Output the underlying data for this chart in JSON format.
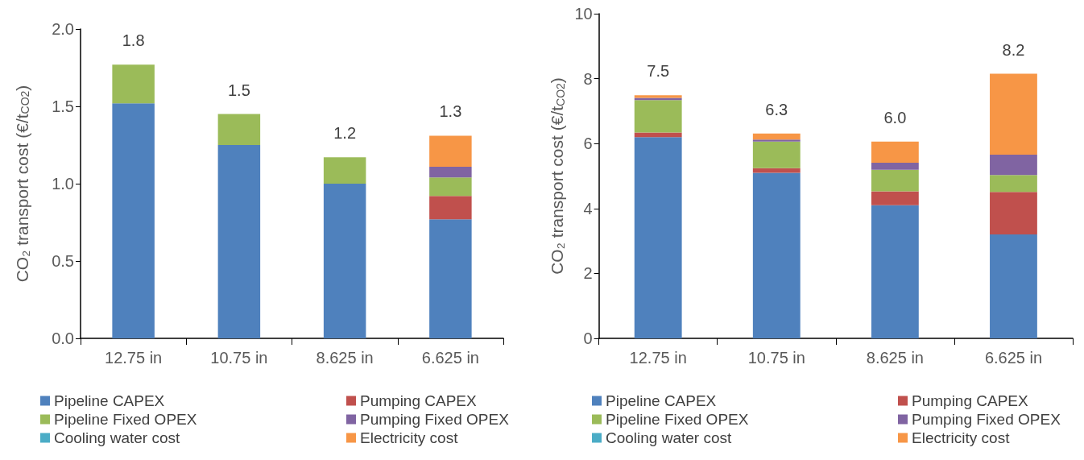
{
  "chart_data": [
    {
      "type": "bar",
      "stacked": true,
      "ylabel": "CO₂ transport cost (€/t$_{CO2}$)",
      "categories": [
        "12.75 in",
        "10.75 in",
        "8.625 in",
        "6.625 in"
      ],
      "ylim": [
        0,
        2
      ],
      "yticks": [
        {
          "value": 0,
          "label": "0.0"
        },
        {
          "value": 0.5,
          "label": "0.5"
        },
        {
          "value": 1,
          "label": "1.0"
        },
        {
          "value": 1.5,
          "label": "1.5"
        },
        {
          "value": 2,
          "label": "2.0"
        }
      ],
      "grid": false,
      "legend": "bottom",
      "totals": [
        "1.8",
        "1.5",
        "1.2",
        "1.3"
      ],
      "series": [
        {
          "name": "Pipeline CAPEX",
          "color": "#4f81bd",
          "values": [
            1.52,
            1.25,
            1.0,
            0.77
          ]
        },
        {
          "name": "Pumping CAPEX",
          "color": "#c0504d",
          "values": [
            0,
            0,
            0,
            0.15
          ]
        },
        {
          "name": "Pipeline Fixed OPEX",
          "color": "#9bbb59",
          "values": [
            0.25,
            0.2,
            0.17,
            0.12
          ]
        },
        {
          "name": "Pumping Fixed OPEX",
          "color": "#8064a2",
          "values": [
            0,
            0,
            0,
            0.07
          ]
        },
        {
          "name": "Cooling water cost",
          "color": "#4bacc6",
          "values": [
            0,
            0,
            0,
            0
          ]
        },
        {
          "name": "Electricity cost",
          "color": "#f79646",
          "values": [
            0,
            0,
            0,
            0.2
          ]
        }
      ]
    },
    {
      "type": "bar",
      "stacked": true,
      "ylabel": "CO₂ transport cost (€/t$_{CO2}$)",
      "categories": [
        "12.75 in",
        "10.75 in",
        "8.625 in",
        "6.625 in"
      ],
      "ylim": [
        0,
        10
      ],
      "yticks": [
        0,
        2,
        4,
        6,
        8,
        10
      ],
      "grid": false,
      "legend": "bottom",
      "totals": [
        "7.5",
        "6.3",
        "6.0",
        "8.2"
      ],
      "series": [
        {
          "name": "Pipeline CAPEX",
          "color": "#4f81bd",
          "values": [
            6.2,
            5.1,
            4.1,
            3.2
          ]
        },
        {
          "name": "Pumping CAPEX",
          "color": "#c0504d",
          "values": [
            0.14,
            0.14,
            0.43,
            1.31
          ]
        },
        {
          "name": "Pipeline Fixed OPEX",
          "color": "#9bbb59",
          "values": [
            1.0,
            0.82,
            0.66,
            0.52
          ]
        },
        {
          "name": "Pumping Fixed OPEX",
          "color": "#8064a2",
          "values": [
            0.07,
            0.06,
            0.22,
            0.63
          ]
        },
        {
          "name": "Cooling water cost",
          "color": "#4bacc6",
          "values": [
            0,
            0,
            0,
            0
          ]
        },
        {
          "name": "Electricity cost",
          "color": "#f79646",
          "values": [
            0.08,
            0.19,
            0.65,
            2.49
          ]
        }
      ]
    }
  ]
}
